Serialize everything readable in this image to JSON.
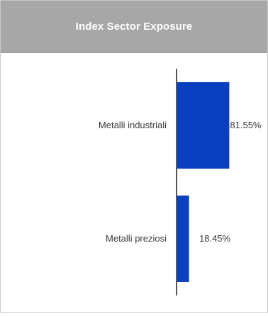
{
  "header": {
    "title": "Index Sector Exposure"
  },
  "colors": {
    "header_bg": "#a7a7a7",
    "bar": "#0a3fbf",
    "axis": "#555555",
    "text": "#3a3a3a"
  },
  "chart_data": {
    "type": "bar",
    "orientation": "horizontal",
    "title": "Index Sector Exposure",
    "categories": [
      "Metalli industriali",
      "Metalli preziosi"
    ],
    "values": [
      81.55,
      18.45
    ],
    "value_labels": [
      "81.55%",
      "18.45%"
    ],
    "unit": "%",
    "xlim": [
      0,
      100
    ],
    "grid": false,
    "legend": "none"
  }
}
